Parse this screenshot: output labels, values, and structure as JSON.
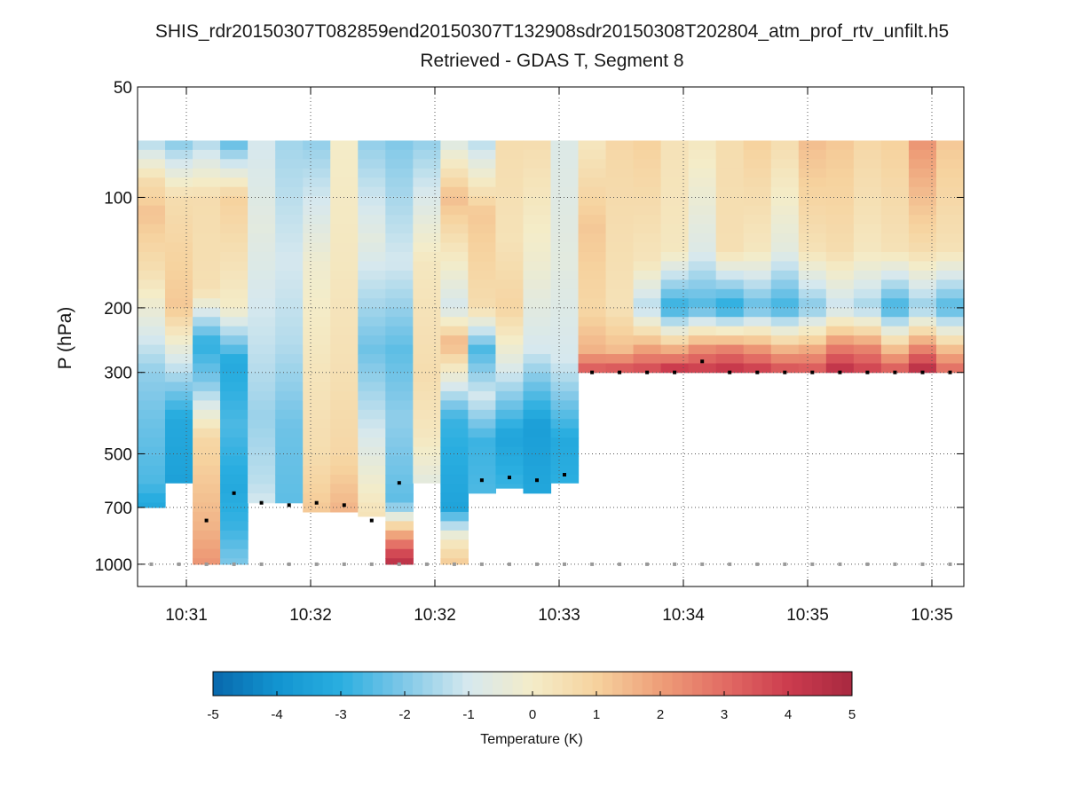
{
  "chart_data": {
    "type": "heatmap",
    "title": "SHIS_rdr20150307T082859end20150307T132908sdr20150308T202804_atm_prof_rtv_unfilt.h5",
    "subtitle": "Retrieved - GDAS T, Segment 8",
    "ylabel": "P (hPa)",
    "xtick_labels": [
      "10:31",
      "10:32",
      "10:32",
      "10:33",
      "10:34",
      "10:35",
      "10:35"
    ],
    "ytick_labels": [
      "50",
      "100",
      "200",
      "300",
      "500",
      "700",
      "1000"
    ],
    "yticks": [
      50,
      100,
      200,
      300,
      500,
      700,
      1000
    ],
    "ylim": [
      50,
      1150
    ],
    "yscale": "log",
    "grid": true,
    "colorbar": {
      "label": "Temperature (K)",
      "tick_labels": [
        "-5",
        "-4",
        "-3",
        "-2",
        "-1",
        "0",
        "1",
        "2",
        "3",
        "4",
        "5"
      ],
      "range": [
        -5,
        5
      ],
      "colormap": "blue-white-red (RdYlBu reversed)"
    },
    "columns": [
      {
        "top": 700,
        "profile": [
          [
            70,
            -1.5
          ],
          [
            90,
            0.6
          ],
          [
            110,
            1.3
          ],
          [
            160,
            0.5
          ],
          [
            230,
            -0.8
          ],
          [
            300,
            -1.8
          ],
          [
            400,
            -2.2
          ],
          [
            600,
            -2.6
          ],
          [
            700,
            -3.3
          ],
          [
            850,
            -2.0
          ],
          [
            1000,
            -0.5
          ]
        ],
        "marker": null
      },
      {
        "top": 600,
        "profile": [
          [
            70,
            -2.0
          ],
          [
            100,
            0.6
          ],
          [
            200,
            1.2
          ],
          [
            260,
            -0.5
          ],
          [
            400,
            -3.2
          ],
          [
            600,
            -3.5
          ]
        ],
        "marker": null
      },
      {
        "top": 1000,
        "profile": [
          [
            70,
            -1.5
          ],
          [
            100,
            0.6
          ],
          [
            180,
            0.5
          ],
          [
            250,
            -3.0
          ],
          [
            320,
            -2.0
          ],
          [
            450,
            0.8
          ],
          [
            600,
            1.2
          ],
          [
            800,
            1.6
          ],
          [
            1000,
            2.2
          ]
        ],
        "marker": 760
      },
      {
        "top": 1000,
        "profile": [
          [
            70,
            -2.5
          ],
          [
            100,
            1.0
          ],
          [
            200,
            0.0
          ],
          [
            280,
            -3.2
          ],
          [
            420,
            -2.6
          ],
          [
            620,
            -3.2
          ],
          [
            800,
            -2.8
          ],
          [
            1000,
            -2.0
          ]
        ],
        "marker": 640
      },
      {
        "top": 680,
        "profile": [
          [
            70,
            -1.0
          ],
          [
            120,
            -0.6
          ],
          [
            250,
            -1.2
          ],
          [
            400,
            -1.7
          ],
          [
            600,
            -1.3
          ],
          [
            680,
            -1.0
          ]
        ],
        "marker": 680
      },
      {
        "top": 680,
        "profile": [
          [
            70,
            -1.6
          ],
          [
            150,
            -1.0
          ],
          [
            250,
            -1.4
          ],
          [
            420,
            -2.2
          ],
          [
            680,
            -2.4
          ]
        ],
        "marker": 690
      },
      {
        "top": 720,
        "profile": [
          [
            70,
            -1.8
          ],
          [
            150,
            -0.2
          ],
          [
            300,
            0.3
          ],
          [
            500,
            0.6
          ],
          [
            720,
            1.2
          ]
        ],
        "marker": 680
      },
      {
        "top": 720,
        "profile": [
          [
            70,
            0.0
          ],
          [
            150,
            0.2
          ],
          [
            300,
            0.5
          ],
          [
            500,
            0.8
          ],
          [
            720,
            1.6
          ]
        ],
        "marker": 690
      },
      {
        "top": 740,
        "profile": [
          [
            70,
            -1.8
          ],
          [
            130,
            -0.6
          ],
          [
            260,
            -2.2
          ],
          [
            400,
            -1.2
          ],
          [
            740,
            0.4
          ]
        ],
        "marker": 760
      },
      {
        "top": 1000,
        "profile": [
          [
            70,
            -2.0
          ],
          [
            150,
            -1.0
          ],
          [
            260,
            -2.4
          ],
          [
            400,
            -1.8
          ],
          [
            680,
            -2.4
          ],
          [
            800,
            1.2
          ],
          [
            900,
            3.2
          ],
          [
            1000,
            4.6
          ]
        ],
        "marker": 600
      },
      {
        "top": 600,
        "profile": [
          [
            70,
            -1.8
          ],
          [
            150,
            0.2
          ],
          [
            300,
            0.6
          ],
          [
            450,
            0.2
          ],
          [
            600,
            -0.6
          ]
        ],
        "marker": null
      },
      {
        "top": 1000,
        "profile": [
          [
            70,
            -0.8
          ],
          [
            100,
            1.4
          ],
          [
            200,
            -1.0
          ],
          [
            250,
            1.6
          ],
          [
            400,
            -2.8
          ],
          [
            700,
            -3.4
          ],
          [
            850,
            0.0
          ],
          [
            1000,
            1.2
          ]
        ],
        "marker": null
      },
      {
        "top": 640,
        "profile": [
          [
            70,
            -1.4
          ],
          [
            110,
            1.2
          ],
          [
            200,
            0.6
          ],
          [
            260,
            -2.6
          ],
          [
            350,
            -1.0
          ],
          [
            460,
            -2.8
          ],
          [
            640,
            -2.6
          ]
        ],
        "marker": 590
      },
      {
        "top": 620,
        "profile": [
          [
            70,
            0.6
          ],
          [
            130,
            0.4
          ],
          [
            200,
            0.9
          ],
          [
            280,
            -0.6
          ],
          [
            450,
            -3.4
          ],
          [
            620,
            -2.8
          ]
        ],
        "marker": 580
      },
      {
        "top": 640,
        "profile": [
          [
            70,
            0.6
          ],
          [
            150,
            -0.2
          ],
          [
            260,
            -1.0
          ],
          [
            420,
            -3.6
          ],
          [
            640,
            -3.3
          ]
        ],
        "marker": 590
      },
      {
        "top": 600,
        "profile": [
          [
            70,
            -0.8
          ],
          [
            150,
            -0.6
          ],
          [
            280,
            -1.0
          ],
          [
            460,
            -3.2
          ],
          [
            600,
            -3.0
          ]
        ],
        "marker": 570
      },
      {
        "top": 300,
        "profile": [
          [
            70,
            0.2
          ],
          [
            120,
            1.2
          ],
          [
            200,
            0.8
          ],
          [
            260,
            1.6
          ],
          [
            300,
            3.6
          ]
        ],
        "marker": 300
      },
      {
        "top": 300,
        "profile": [
          [
            70,
            0.8
          ],
          [
            150,
            0.5
          ],
          [
            200,
            0.4
          ],
          [
            260,
            1.4
          ],
          [
            300,
            3.8
          ]
        ],
        "marker": 300
      },
      {
        "top": 300,
        "profile": [
          [
            70,
            1.0
          ],
          [
            150,
            0.3
          ],
          [
            200,
            -1.4
          ],
          [
            260,
            2.0
          ],
          [
            300,
            3.9
          ]
        ],
        "marker": 300
      },
      {
        "top": 300,
        "profile": [
          [
            70,
            0.4
          ],
          [
            140,
            0.2
          ],
          [
            200,
            -3.0
          ],
          [
            270,
            2.4
          ],
          [
            300,
            4.6
          ]
        ],
        "marker": 300
      },
      {
        "top": 300,
        "profile": [
          [
            70,
            0.2
          ],
          [
            140,
            -0.8
          ],
          [
            200,
            -2.6
          ],
          [
            260,
            2.4
          ],
          [
            300,
            4.2
          ]
        ],
        "marker": 280
      },
      {
        "top": 300,
        "profile": [
          [
            70,
            0.6
          ],
          [
            140,
            0.5
          ],
          [
            200,
            -3.2
          ],
          [
            260,
            2.6
          ],
          [
            300,
            4.5
          ]
        ],
        "marker": 300
      },
      {
        "top": 300,
        "profile": [
          [
            70,
            1.0
          ],
          [
            140,
            0.2
          ],
          [
            200,
            -2.4
          ],
          [
            260,
            2.2
          ],
          [
            300,
            4.2
          ]
        ],
        "marker": 300
      },
      {
        "top": 300,
        "profile": [
          [
            70,
            0.6
          ],
          [
            140,
            -0.6
          ],
          [
            200,
            -2.8
          ],
          [
            260,
            1.6
          ],
          [
            300,
            3.8
          ]
        ],
        "marker": 300
      },
      {
        "top": 300,
        "profile": [
          [
            70,
            1.4
          ],
          [
            140,
            0.4
          ],
          [
            200,
            -2.0
          ],
          [
            260,
            1.8
          ],
          [
            300,
            3.6
          ]
        ],
        "marker": 300
      },
      {
        "top": 300,
        "profile": [
          [
            70,
            1.2
          ],
          [
            140,
            0.6
          ],
          [
            200,
            -1.2
          ],
          [
            260,
            2.8
          ],
          [
            300,
            4.6
          ]
        ],
        "marker": 300
      },
      {
        "top": 300,
        "profile": [
          [
            70,
            0.8
          ],
          [
            140,
            0.2
          ],
          [
            200,
            -1.6
          ],
          [
            260,
            2.6
          ],
          [
            300,
            4.0
          ]
        ],
        "marker": 300
      },
      {
        "top": 300,
        "profile": [
          [
            70,
            1.0
          ],
          [
            140,
            0.4
          ],
          [
            200,
            -2.8
          ],
          [
            260,
            1.4
          ],
          [
            300,
            3.6
          ]
        ],
        "marker": 300
      },
      {
        "top": 300,
        "profile": [
          [
            70,
            2.2
          ],
          [
            140,
            0.6
          ],
          [
            200,
            -1.8
          ],
          [
            260,
            2.6
          ],
          [
            300,
            4.8
          ]
        ],
        "marker": 300
      },
      {
        "top": 300,
        "profile": [
          [
            70,
            1.2
          ],
          [
            140,
            0.4
          ],
          [
            200,
            -2.6
          ],
          [
            260,
            1.4
          ],
          [
            300,
            3.2
          ]
        ],
        "marker": 300
      }
    ]
  }
}
